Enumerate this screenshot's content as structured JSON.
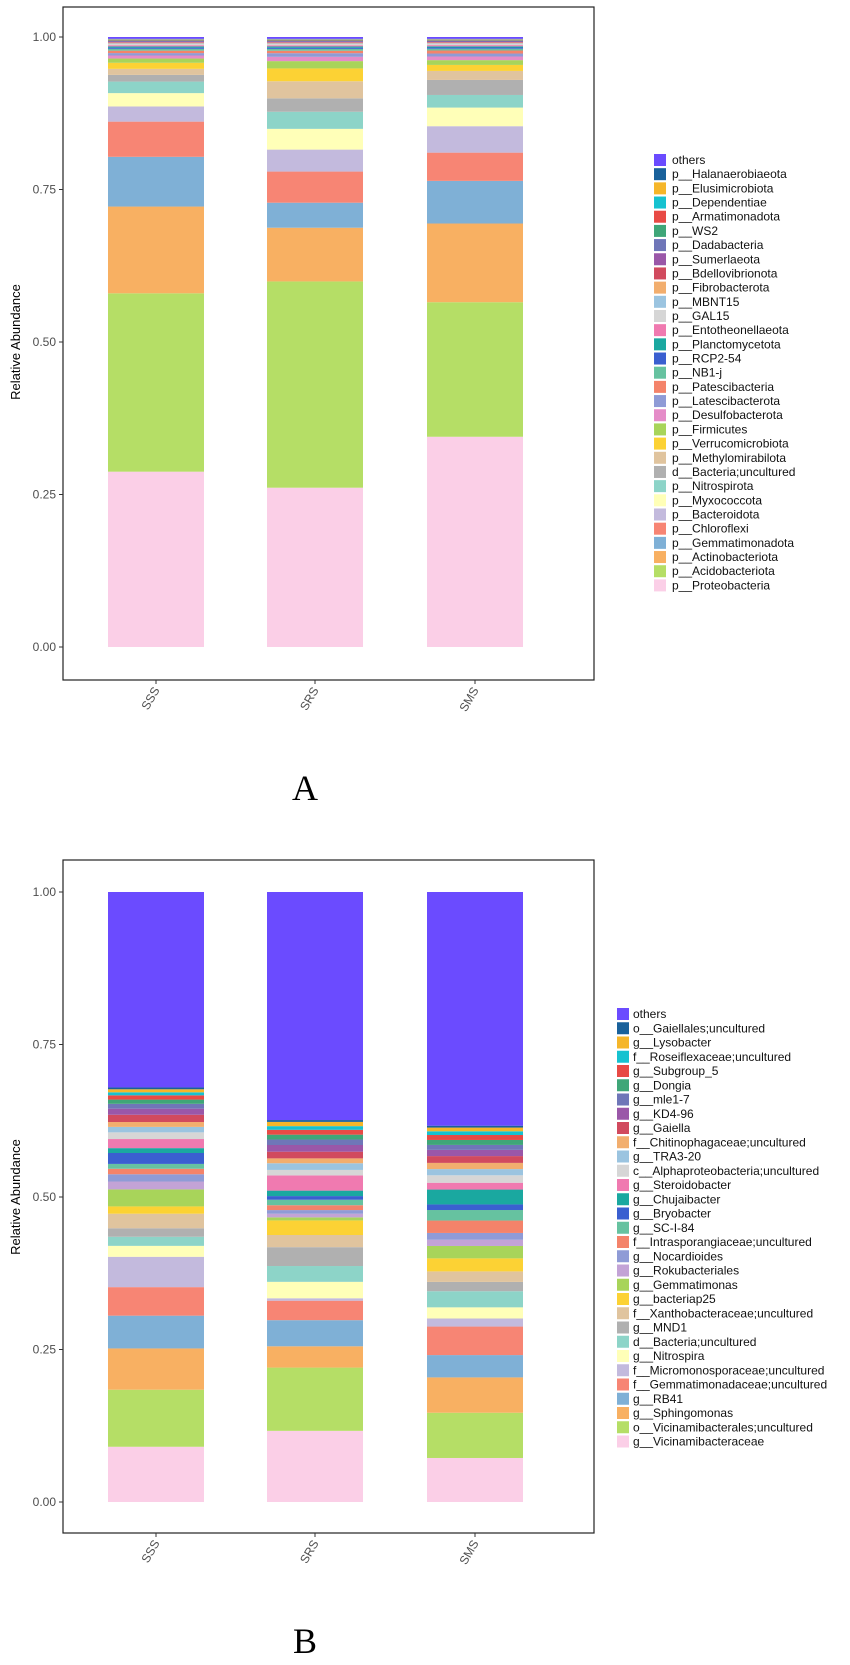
{
  "panel_labels": [
    "A",
    "B"
  ],
  "chart_data": [
    {
      "type": "bar",
      "stacked": true,
      "title": "",
      "xlabel": "",
      "ylabel": "Relative Abundance",
      "ylim": [
        0,
        1
      ],
      "yticks": [
        "0.00",
        "0.25",
        "0.50",
        "0.75",
        "1.00"
      ],
      "categories": [
        "SSS",
        "SRS",
        "SMS"
      ],
      "legend": {
        "placement": "right"
      },
      "series": [
        {
          "name": "p__Proteobacteria",
          "color": "#FBCFE7",
          "values": [
            0.289,
            0.261,
            0.35
          ]
        },
        {
          "name": "p__Acidobacteriota",
          "color": "#B5DE66",
          "values": [
            0.294,
            0.338,
            0.224
          ]
        },
        {
          "name": "p__Actinobacteriota",
          "color": "#F8B062",
          "values": [
            0.143,
            0.088,
            0.131
          ]
        },
        {
          "name": "p__Gemmatimonadota",
          "color": "#7FB0D6",
          "values": [
            0.082,
            0.041,
            0.071
          ]
        },
        {
          "name": "p__Chloroflexi",
          "color": "#F78574",
          "values": [
            0.058,
            0.051,
            0.047
          ]
        },
        {
          "name": "p__Bacteroidota",
          "color": "#C3BADD",
          "values": [
            0.025,
            0.036,
            0.044
          ]
        },
        {
          "name": "p__Myxococcota",
          "color": "#FFFFB8",
          "values": [
            0.022,
            0.034,
            0.031
          ]
        },
        {
          "name": "p__Nitrospirota",
          "color": "#8DD4C8",
          "values": [
            0.019,
            0.028,
            0.021
          ]
        },
        {
          "name": "d__Bacteria;uncultured",
          "color": "#B0B0B0",
          "values": [
            0.011,
            0.022,
            0.025
          ]
        },
        {
          "name": "p__Methylomirabilota",
          "color": "#E0C49E",
          "values": [
            0.01,
            0.028,
            0.015
          ]
        },
        {
          "name": "p__Verrucomicrobiota",
          "color": "#FCD234",
          "values": [
            0.01,
            0.021,
            0.01
          ]
        },
        {
          "name": "p__Firmicutes",
          "color": "#A8D45A",
          "values": [
            0.007,
            0.012,
            0.008
          ]
        },
        {
          "name": "p__Desulfobacterota",
          "color": "#E58CC8",
          "values": [
            0.005,
            0.007,
            0.006
          ]
        },
        {
          "name": "p__Latescibacterota",
          "color": "#8F9BD6",
          "values": [
            0.004,
            0.006,
            0.005
          ]
        },
        {
          "name": "p__Patescibacteria",
          "color": "#F4836A",
          "values": [
            0.004,
            0.004,
            0.005
          ]
        },
        {
          "name": "p__NB1-j",
          "color": "#66C2A0",
          "values": [
            0.003,
            0.003,
            0.003
          ]
        },
        {
          "name": "p__RCP2-54",
          "color": "#3A5FD0",
          "values": [
            0.002,
            0.002,
            0.002
          ]
        },
        {
          "name": "p__Planctomycetota",
          "color": "#1AA8A0",
          "values": [
            0.002,
            0.002,
            0.002
          ]
        },
        {
          "name": "p__Entotheonellaeota",
          "color": "#F07AB0",
          "values": [
            0.002,
            0.002,
            0.002
          ]
        },
        {
          "name": "p__GAL15",
          "color": "#D6D6D6",
          "values": [
            0.002,
            0.002,
            0.002
          ]
        },
        {
          "name": "p__MBNT15",
          "color": "#9BC4E0",
          "values": [
            0.001,
            0.001,
            0.001
          ]
        },
        {
          "name": "p__Fibrobacterota",
          "color": "#F2AE6E",
          "values": [
            0.001,
            0.001,
            0.001
          ]
        },
        {
          "name": "p__Bdellovibrionota",
          "color": "#D14A5E",
          "values": [
            0.001,
            0.001,
            0.001
          ]
        },
        {
          "name": "p__Sumerlaeota",
          "color": "#9A57A8",
          "values": [
            0.001,
            0.001,
            0.001
          ]
        },
        {
          "name": "p__Dadabacteria",
          "color": "#6F76B8",
          "values": [
            0.001,
            0.001,
            0.001
          ]
        },
        {
          "name": "p__WS2",
          "color": "#3FA678",
          "values": [
            0.001,
            0.001,
            0.001
          ]
        },
        {
          "name": "p__Armatimonadota",
          "color": "#E84A45",
          "values": [
            0.001,
            0.001,
            0.001
          ]
        },
        {
          "name": "p__Dependentiae",
          "color": "#16C2D0",
          "values": [
            0.0005,
            0.0005,
            0.0005
          ]
        },
        {
          "name": "p__Elusimicrobiota",
          "color": "#F5B62A",
          "values": [
            0.0005,
            0.0005,
            0.0005
          ]
        },
        {
          "name": "p__Halanaerobiaeota",
          "color": "#19619B",
          "values": [
            0.0005,
            0.0005,
            0.0005
          ]
        },
        {
          "name": "others",
          "color": "#6B4BFF",
          "values": [
            0.003,
            0.003,
            0.003
          ]
        }
      ]
    },
    {
      "type": "bar",
      "stacked": true,
      "title": "",
      "xlabel": "",
      "ylabel": "Relative Abundance",
      "ylim": [
        0,
        1
      ],
      "yticks": [
        "0.00",
        "0.25",
        "0.50",
        "0.75",
        "1.00"
      ],
      "categories": [
        "SSS",
        "SRS",
        "SMS"
      ],
      "legend": {
        "placement": "right"
      },
      "series": [
        {
          "name": "g__Vicinamibacteraceae",
          "color": "#FBCFE7",
          "values": [
            0.091,
            0.117,
            0.071
          ]
        },
        {
          "name": "o__Vicinamibacterales;uncultured",
          "color": "#B5DE66",
          "values": [
            0.094,
            0.104,
            0.073
          ]
        },
        {
          "name": "g__Sphingomonas",
          "color": "#F8B062",
          "values": [
            0.068,
            0.035,
            0.057
          ]
        },
        {
          "name": "g__RB41",
          "color": "#7FB0D6",
          "values": [
            0.054,
            0.043,
            0.036
          ]
        },
        {
          "name": "f__Gemmatimonadaceae;uncultured",
          "color": "#F78574",
          "values": [
            0.047,
            0.032,
            0.046
          ]
        },
        {
          "name": "f__Micromonosporaceae;uncultured",
          "color": "#C3BADD",
          "values": [
            0.05,
            0.004,
            0.013
          ]
        },
        {
          "name": "g__Nitrospira",
          "color": "#FFFFB8",
          "values": [
            0.018,
            0.027,
            0.018
          ]
        },
        {
          "name": "d__Bacteria;uncultured",
          "color": "#8DD4C8",
          "values": [
            0.015,
            0.026,
            0.026
          ]
        },
        {
          "name": "g__MND1",
          "color": "#B0B0B0",
          "values": [
            0.014,
            0.031,
            0.015
          ]
        },
        {
          "name": "f__Xanthobacteraceae;uncultured",
          "color": "#E0C49E",
          "values": [
            0.024,
            0.02,
            0.017
          ]
        },
        {
          "name": "g__bacteriap25",
          "color": "#FCD234",
          "values": [
            0.012,
            0.024,
            0.021
          ]
        },
        {
          "name": "g__Gemmatimonas",
          "color": "#A8D45A",
          "values": [
            0.028,
            0.005,
            0.02
          ]
        },
        {
          "name": "g__Rokubacteriales",
          "color": "#C3A3D6",
          "values": [
            0.013,
            0.006,
            0.01
          ]
        },
        {
          "name": "g__Nocardioides",
          "color": "#8F9BD6",
          "values": [
            0.012,
            0.006,
            0.011
          ]
        },
        {
          "name": "f__Intrasporangiaceae;uncultured",
          "color": "#F4836A",
          "values": [
            0.009,
            0.008,
            0.02
          ]
        },
        {
          "name": "g__SC-I-84",
          "color": "#66C2A0",
          "values": [
            0.008,
            0.009,
            0.017
          ]
        },
        {
          "name": "g__Bryobacter",
          "color": "#3A5FD0",
          "values": [
            0.018,
            0.006,
            0.009
          ]
        },
        {
          "name": "g__Chujaibacter",
          "color": "#1AA8A0",
          "values": [
            0.008,
            0.009,
            0.024
          ]
        },
        {
          "name": "g__Steroidobacter",
          "color": "#F07AB0",
          "values": [
            0.015,
            0.025,
            0.011
          ]
        },
        {
          "name": "c__Alphaproteobacteria;uncultured",
          "color": "#D6D6D6",
          "values": [
            0.011,
            0.009,
            0.012
          ]
        },
        {
          "name": "g__TRA3-20",
          "color": "#9BC4E0",
          "values": [
            0.009,
            0.011,
            0.01
          ]
        },
        {
          "name": "f__Chitinophagaceae;uncultured",
          "color": "#F2AE6E",
          "values": [
            0.008,
            0.008,
            0.01
          ]
        },
        {
          "name": "g__Gaiella",
          "color": "#D14A5E",
          "values": [
            0.012,
            0.011,
            0.011
          ]
        },
        {
          "name": "g__KD4-96",
          "color": "#9A57A8",
          "values": [
            0.01,
            0.011,
            0.01
          ]
        },
        {
          "name": "g__mle1-7",
          "color": "#6F76B8",
          "values": [
            0.008,
            0.009,
            0.008
          ]
        },
        {
          "name": "g__Dongia",
          "color": "#3FA678",
          "values": [
            0.007,
            0.008,
            0.008
          ]
        },
        {
          "name": "g__Subgroup_5",
          "color": "#E84A45",
          "values": [
            0.007,
            0.008,
            0.008
          ]
        },
        {
          "name": "f__Roseiflexaceae;uncultured",
          "color": "#16C2D0",
          "values": [
            0.005,
            0.006,
            0.006
          ]
        },
        {
          "name": "g__Lysobacter",
          "color": "#F5B62A",
          "values": [
            0.005,
            0.007,
            0.006
          ]
        },
        {
          "name": "o__Gaiellales;uncultured",
          "color": "#19619B",
          "values": [
            0.003,
            0.003,
            0.003
          ]
        },
        {
          "name": "others",
          "color": "#6B4BFF",
          "values": [
            0.322,
            0.375,
            0.377
          ]
        }
      ]
    }
  ]
}
